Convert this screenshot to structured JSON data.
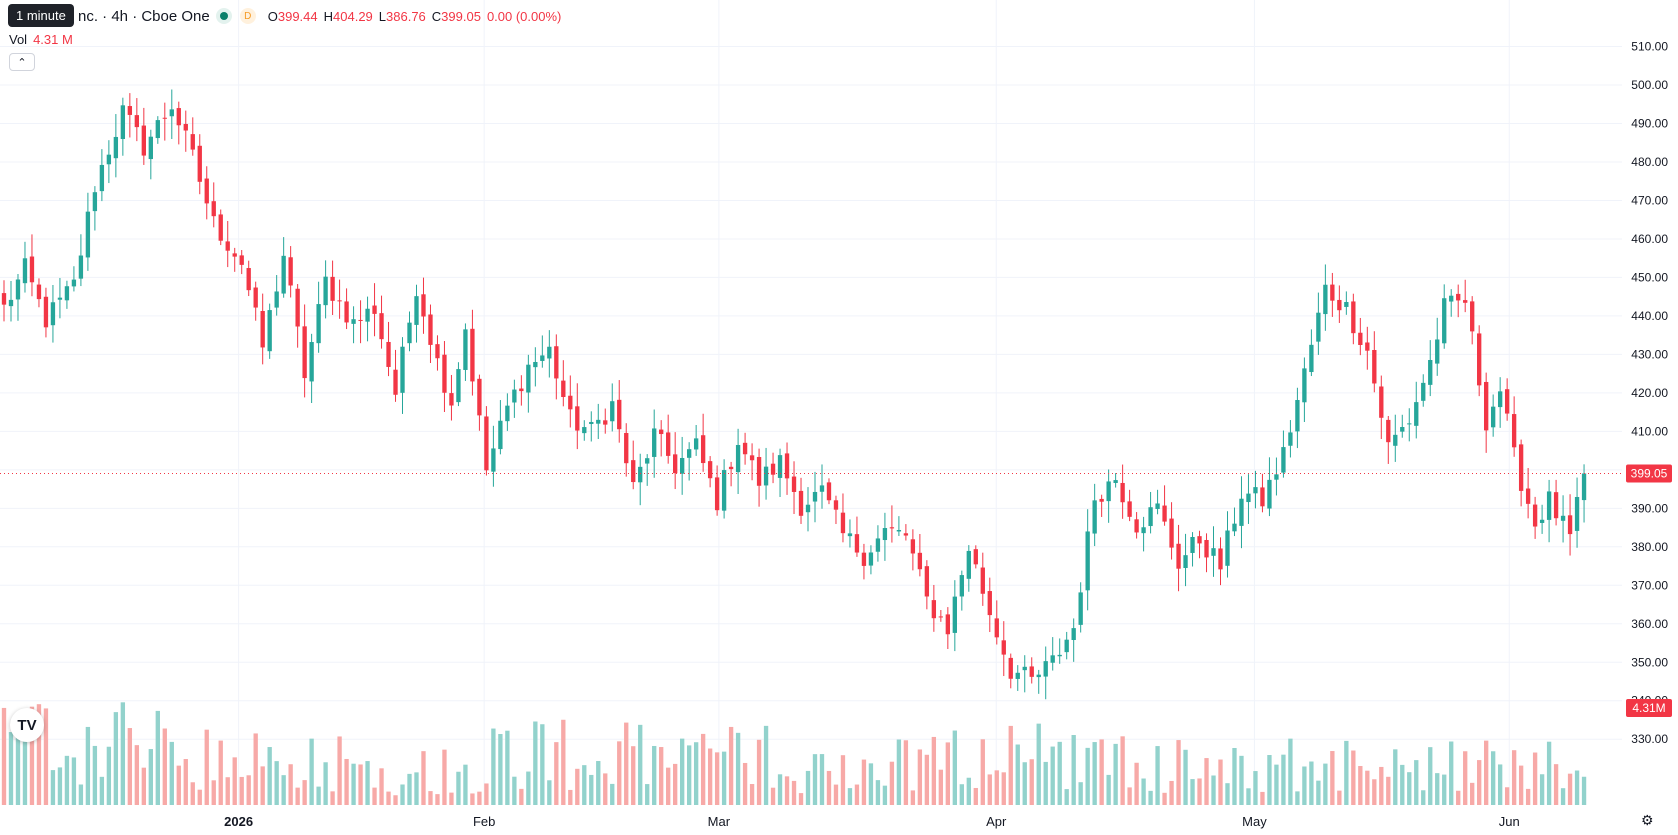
{
  "header": {
    "tooltip": "1 minute",
    "title": "nc. · 4h · Cboe One",
    "d_badge": "D",
    "ohlc": [
      {
        "k": "O",
        "v": "399.44"
      },
      {
        "k": "H",
        "v": "404.29"
      },
      {
        "k": "L",
        "v": "386.76"
      },
      {
        "k": "C",
        "v": "399.05"
      }
    ],
    "change": "0.00 (0.00%)",
    "vol_label": "Vol",
    "vol_value": "4.31 M",
    "collapse_icon": "chevron-up-icon"
  },
  "colors": {
    "up": "#26a69a",
    "down": "#f23645",
    "up_vol": "#92d2cc",
    "down_vol": "#f7a9a7",
    "grid": "#f0f3fa"
  },
  "chart_data": {
    "type": "candlestick",
    "x_tick_labels": [
      "2026",
      "Feb",
      "Mar",
      "Apr",
      "May",
      "Jun"
    ],
    "x_tick_fractions": [
      0.1471,
      0.2985,
      0.4432,
      0.6142,
      0.7734,
      0.9305
    ],
    "y_ticks": [
      "510.00",
      "500.00",
      "490.00",
      "480.00",
      "470.00",
      "460.00",
      "450.00",
      "440.00",
      "430.00",
      "420.00",
      "410.00",
      "400.00",
      "390.00",
      "380.00",
      "370.00",
      "360.00",
      "350.00",
      "340.00",
      "330.00"
    ],
    "ylim": [
      322,
      513
    ],
    "last_price": 399.05,
    "last_price_label": "399.05",
    "volume_label": "4.31M",
    "series": [
      {
        "name": "price",
        "anchors": [
          [
            0,
            442
          ],
          [
            3,
            452
          ],
          [
            6,
            439
          ],
          [
            10,
            448
          ],
          [
            13,
            474
          ],
          [
            17,
            493
          ],
          [
            20,
            484
          ],
          [
            24,
            495
          ],
          [
            27,
            481
          ],
          [
            30,
            464
          ],
          [
            34,
            454
          ],
          [
            37,
            432
          ],
          [
            40,
            456
          ],
          [
            43,
            425
          ],
          [
            46,
            449
          ],
          [
            50,
            438
          ],
          [
            53,
            442
          ],
          [
            56,
            420
          ],
          [
            59,
            448
          ],
          [
            62,
            428
          ],
          [
            64,
            418
          ],
          [
            66,
            437
          ],
          [
            69,
            400
          ],
          [
            72,
            416
          ],
          [
            75,
            427
          ],
          [
            78,
            431
          ],
          [
            81,
            413
          ],
          [
            84,
            410
          ],
          [
            87,
            417
          ],
          [
            90,
            395
          ],
          [
            93,
            409
          ],
          [
            96,
            401
          ],
          [
            99,
            406
          ],
          [
            102,
            392
          ],
          [
            105,
            408
          ],
          [
            108,
            397
          ],
          [
            111,
            402
          ],
          [
            114,
            391
          ],
          [
            117,
            394
          ],
          [
            120,
            383
          ],
          [
            123,
            378
          ],
          [
            126,
            384
          ],
          [
            129,
            383
          ],
          [
            132,
            366
          ],
          [
            135,
            359
          ],
          [
            138,
            380
          ],
          [
            141,
            363
          ],
          [
            144,
            348
          ],
          [
            147,
            345
          ],
          [
            150,
            350
          ],
          [
            153,
            359
          ],
          [
            156,
            393
          ],
          [
            159,
            398
          ],
          [
            162,
            386
          ],
          [
            165,
            390
          ],
          [
            168,
            376
          ],
          [
            171,
            382
          ],
          [
            174,
            375
          ],
          [
            177,
            394
          ],
          [
            180,
            392
          ],
          [
            183,
            404
          ],
          [
            186,
            425
          ],
          [
            189,
            447
          ],
          [
            192,
            442
          ],
          [
            195,
            431
          ],
          [
            198,
            406
          ],
          [
            201,
            413
          ],
          [
            204,
            428
          ],
          [
            206,
            442
          ],
          [
            209,
            444
          ],
          [
            212,
            413
          ],
          [
            214,
            421
          ],
          [
            216,
            403
          ],
          [
            219,
            386
          ],
          [
            221,
            392
          ],
          [
            224,
            382
          ],
          [
            226,
            398
          ]
        ]
      },
      {
        "name": "volume",
        "profile": [
          [
            0,
            1.3
          ],
          [
            15,
            1.4
          ],
          [
            30,
            0.9
          ],
          [
            45,
            1.0
          ],
          [
            60,
            0.7
          ],
          [
            75,
            1.2
          ],
          [
            90,
            1.0
          ],
          [
            105,
            1.1
          ],
          [
            120,
            0.7
          ],
          [
            135,
            1.0
          ],
          [
            150,
            1.1
          ],
          [
            165,
            0.8
          ],
          [
            180,
            0.9
          ],
          [
            195,
            0.8
          ],
          [
            210,
            0.8
          ],
          [
            226,
            1.0
          ]
        ]
      }
    ]
  }
}
